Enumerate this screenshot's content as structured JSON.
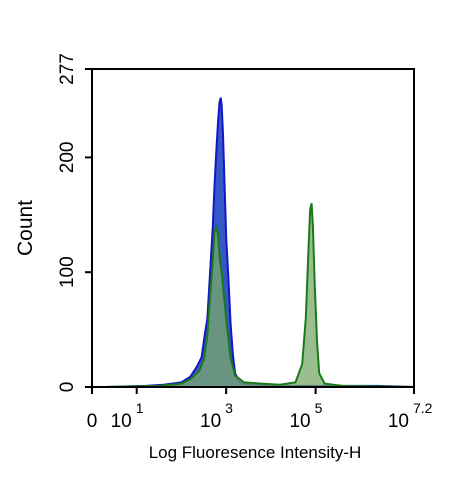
{
  "chart_data": {
    "type": "area",
    "title": "",
    "xlabel": "Log Fluoresence Intensity-H",
    "ylabel": "Count",
    "x_scale": "log",
    "xlim": [
      0,
      7.2
    ],
    "ylim": [
      0,
      277
    ],
    "x_ticks": [
      {
        "base": "0",
        "exp": ""
      },
      {
        "base": "10",
        "exp": "1"
      },
      {
        "base": "10",
        "exp": "3"
      },
      {
        "base": "10",
        "exp": "5"
      },
      {
        "base": "10",
        "exp": "7.2"
      }
    ],
    "y_ticks": [
      "0",
      "100",
      "200",
      "277"
    ],
    "grid": false,
    "series": [
      {
        "color": "#1616c8",
        "fill": "#2a4fc4",
        "points": [
          [
            0.3,
            0
          ],
          [
            1.2,
            1
          ],
          [
            1.6,
            2
          ],
          [
            2.0,
            4
          ],
          [
            2.2,
            9
          ],
          [
            2.35,
            18
          ],
          [
            2.45,
            26
          ],
          [
            2.52,
            45
          ],
          [
            2.58,
            60
          ],
          [
            2.64,
            100
          ],
          [
            2.7,
            140
          ],
          [
            2.74,
            175
          ],
          [
            2.78,
            205
          ],
          [
            2.82,
            232
          ],
          [
            2.85,
            248
          ],
          [
            2.88,
            252
          ],
          [
            2.9,
            245
          ],
          [
            2.93,
            220
          ],
          [
            2.97,
            170
          ],
          [
            3.0,
            130
          ],
          [
            3.05,
            95
          ],
          [
            3.1,
            55
          ],
          [
            3.15,
            28
          ],
          [
            3.2,
            12
          ],
          [
            3.3,
            4
          ],
          [
            3.5,
            2
          ],
          [
            4.0,
            1
          ],
          [
            6.4,
            1
          ],
          [
            7.2,
            0
          ]
        ]
      },
      {
        "color": "#1a7a1a",
        "fill": "#7aa86a",
        "points": [
          [
            0.3,
            0
          ],
          [
            1.5,
            1
          ],
          [
            2.0,
            3
          ],
          [
            2.2,
            7
          ],
          [
            2.4,
            14
          ],
          [
            2.5,
            24
          ],
          [
            2.58,
            45
          ],
          [
            2.64,
            80
          ],
          [
            2.7,
            110
          ],
          [
            2.74,
            135
          ],
          [
            2.78,
            140
          ],
          [
            2.82,
            132
          ],
          [
            2.86,
            110
          ],
          [
            2.9,
            100
          ],
          [
            2.95,
            80
          ],
          [
            3.0,
            60
          ],
          [
            3.05,
            42
          ],
          [
            3.1,
            25
          ],
          [
            3.2,
            10
          ],
          [
            3.4,
            4
          ],
          [
            3.8,
            3
          ],
          [
            4.2,
            2
          ],
          [
            4.55,
            4
          ],
          [
            4.7,
            20
          ],
          [
            4.78,
            60
          ],
          [
            4.84,
            120
          ],
          [
            4.88,
            155
          ],
          [
            4.91,
            160
          ],
          [
            4.94,
            140
          ],
          [
            4.98,
            90
          ],
          [
            5.03,
            40
          ],
          [
            5.08,
            12
          ],
          [
            5.2,
            3
          ],
          [
            5.6,
            1
          ],
          [
            7.2,
            0
          ]
        ]
      }
    ]
  }
}
